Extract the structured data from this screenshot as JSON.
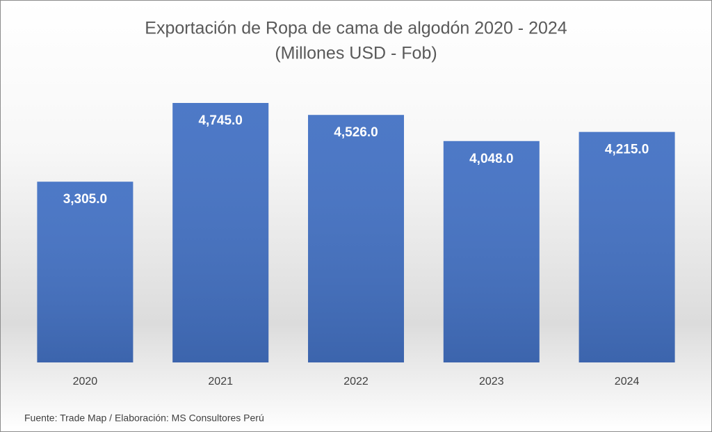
{
  "chart_data": {
    "type": "bar",
    "title": "Exportación de Ropa de cama de algodón 2020 - 2024",
    "subtitle": "(Millones USD - Fob)",
    "categories": [
      "2020",
      "2021",
      "2022",
      "2023",
      "2024"
    ],
    "values": [
      3305,
      4745,
      4526,
      4048,
      4215
    ],
    "value_labels": [
      "3,305.0",
      "4,745.0",
      "4,526.0",
      "4,048.0",
      "4,215.0"
    ],
    "color": "#4472c4",
    "source": "Fuente: Trade Map / Elaboración: MS Consultores Perú"
  }
}
